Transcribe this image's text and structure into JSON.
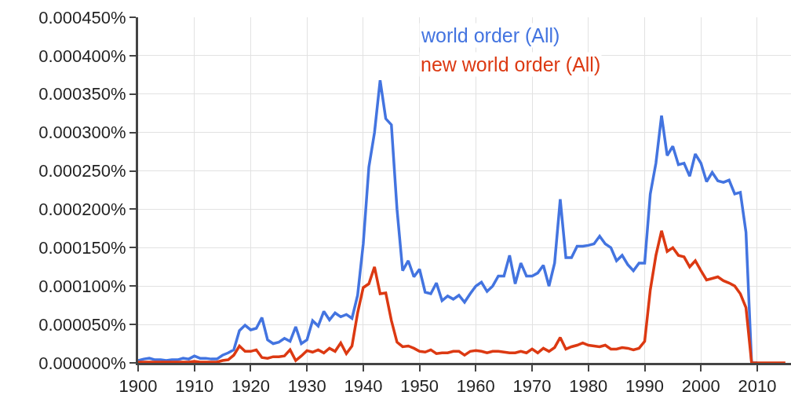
{
  "chart_data": {
    "type": "line",
    "x": [
      1900,
      1901,
      1902,
      1903,
      1904,
      1905,
      1906,
      1907,
      1908,
      1909,
      1910,
      1911,
      1912,
      1913,
      1914,
      1915,
      1916,
      1917,
      1918,
      1919,
      1920,
      1921,
      1922,
      1923,
      1924,
      1925,
      1926,
      1927,
      1928,
      1929,
      1930,
      1931,
      1932,
      1933,
      1934,
      1935,
      1936,
      1937,
      1938,
      1939,
      1940,
      1941,
      1942,
      1943,
      1944,
      1945,
      1946,
      1947,
      1948,
      1949,
      1950,
      1951,
      1952,
      1953,
      1954,
      1955,
      1956,
      1957,
      1958,
      1959,
      1960,
      1961,
      1962,
      1963,
      1964,
      1965,
      1966,
      1967,
      1968,
      1969,
      1970,
      1971,
      1972,
      1973,
      1974,
      1975,
      1976,
      1977,
      1978,
      1979,
      1980,
      1981,
      1982,
      1983,
      1984,
      1985,
      1986,
      1987,
      1988,
      1989,
      1990,
      1991,
      1992,
      1993,
      1994,
      1995,
      1996,
      1997,
      1998,
      1999,
      2000,
      2001,
      2002,
      2003,
      2004,
      2005,
      2006,
      2007,
      2008,
      2009,
      2010,
      2011,
      2012,
      2013,
      2014,
      2015
    ],
    "series": [
      {
        "name": "world order (All)",
        "color": "#4374e0",
        "values": [
          3e-06,
          5e-06,
          6e-06,
          4e-06,
          4e-06,
          3e-06,
          4e-06,
          4e-06,
          6e-06,
          5e-06,
          9e-06,
          6e-06,
          6e-06,
          5e-06,
          5e-06,
          1e-05,
          1.3e-05,
          1.7e-05,
          4.2e-05,
          4.9e-05,
          4.3e-05,
          4.5e-05,
          5.9e-05,
          3e-05,
          2.5e-05,
          2.7e-05,
          3.2e-05,
          2.8e-05,
          4.7e-05,
          2.5e-05,
          3e-05,
          5.5e-05,
          4.8e-05,
          6.7e-05,
          5.6e-05,
          6.5e-05,
          6e-05,
          6.3e-05,
          5.8e-05,
          8.8e-05,
          0.000155,
          0.000255,
          0.0003,
          0.000368,
          0.000318,
          0.00031,
          0.0002,
          0.00012,
          0.000133,
          0.000112,
          0.000122,
          9.2e-05,
          9e-05,
          0.000104,
          8.1e-05,
          8.7e-05,
          8.3e-05,
          8.8e-05,
          7.9e-05,
          9e-05,
          0.0001,
          0.000105,
          9.3e-05,
          0.0001,
          0.000113,
          0.000113,
          0.00014,
          0.000103,
          0.00013,
          0.000113,
          0.000113,
          0.000117,
          0.000127,
          0.0001,
          0.00013,
          0.000213,
          0.000137,
          0.000137,
          0.000152,
          0.000152,
          0.000153,
          0.000155,
          0.000165,
          0.000155,
          0.00015,
          0.000133,
          0.00014,
          0.000128,
          0.00012,
          0.00013,
          0.00013,
          0.00022,
          0.00026,
          0.000322,
          0.00027,
          0.000282,
          0.000258,
          0.00026,
          0.000243,
          0.000272,
          0.00026,
          0.000236,
          0.000248,
          0.000237,
          0.000235,
          0.000238,
          0.00022,
          0.000222,
          0.00017,
          0,
          0,
          null,
          null,
          null,
          null,
          null
        ]
      },
      {
        "name": "new world order (All)",
        "color": "#dc3912",
        "values": [
          1e-06,
          1e-06,
          1e-06,
          1e-06,
          1e-06,
          1e-06,
          1e-06,
          1e-06,
          1e-06,
          1e-06,
          2e-06,
          1e-06,
          1e-06,
          1e-06,
          1e-06,
          3e-06,
          4e-06,
          1e-05,
          2.2e-05,
          1.5e-05,
          1.5e-05,
          1.7e-05,
          7e-06,
          6e-06,
          8e-06,
          8e-06,
          9e-06,
          1.7e-05,
          3e-06,
          9e-06,
          1.6e-05,
          1.4e-05,
          1.7e-05,
          1.3e-05,
          1.9e-05,
          1.5e-05,
          2.6e-05,
          1.2e-05,
          2.2e-05,
          6.5e-05,
          9.8e-05,
          0.000103,
          0.000125,
          9e-05,
          9.1e-05,
          5.5e-05,
          2.7e-05,
          2.1e-05,
          2.2e-05,
          1.9e-05,
          1.5e-05,
          1.4e-05,
          1.7e-05,
          1.2e-05,
          1.3e-05,
          1.3e-05,
          1.5e-05,
          1.5e-05,
          1e-05,
          1.5e-05,
          1.6e-05,
          1.5e-05,
          1.3e-05,
          1.5e-05,
          1.5e-05,
          1.4e-05,
          1.3e-05,
          1.3e-05,
          1.5e-05,
          1.3e-05,
          1.8e-05,
          1.3e-05,
          1.9e-05,
          1.5e-05,
          2e-05,
          3.3e-05,
          1.8e-05,
          2.1e-05,
          2.3e-05,
          2.6e-05,
          2.3e-05,
          2.2e-05,
          2.1e-05,
          2.3e-05,
          1.8e-05,
          1.8e-05,
          2e-05,
          1.9e-05,
          1.7e-05,
          1.9e-05,
          2.8e-05,
          9.5e-05,
          0.00014,
          0.000172,
          0.000145,
          0.00015,
          0.00014,
          0.000138,
          0.000125,
          0.000133,
          0.00012,
          0.000108,
          0.00011,
          0.000112,
          0.000107,
          0.000104,
          0.0001,
          9e-05,
          7.2e-05,
          0,
          0,
          0,
          0,
          0,
          0,
          0
        ]
      }
    ],
    "xlim": [
      1900,
      2016
    ],
    "xticks": [
      1900,
      1910,
      1920,
      1930,
      1940,
      1950,
      1960,
      1970,
      1980,
      1990,
      2000,
      2010
    ],
    "ylim": [
      0,
      0.00045
    ],
    "yticks": [
      {
        "value": 0,
        "label": "0.000000%"
      },
      {
        "value": 5e-05,
        "label": "0.000050%"
      },
      {
        "value": 0.0001,
        "label": "0.000100%"
      },
      {
        "value": 0.00015,
        "label": "0.000150%"
      },
      {
        "value": 0.0002,
        "label": "0.000200%"
      },
      {
        "value": 0.00025,
        "label": "0.000250%"
      },
      {
        "value": 0.0003,
        "label": "0.000300%"
      },
      {
        "value": 0.00035,
        "label": "0.000350%"
      },
      {
        "value": 0.0004,
        "label": "0.000400%"
      },
      {
        "value": 0.00045,
        "label": "0.000450%"
      }
    ],
    "grid": true,
    "line_style": "solid"
  }
}
